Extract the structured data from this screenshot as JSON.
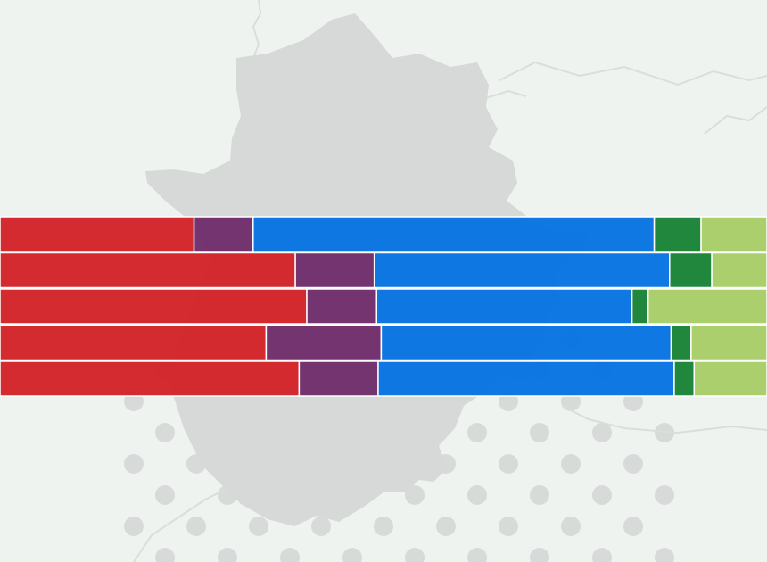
{
  "background": {
    "color": "#eef3f0",
    "region_color": "#d7d8d8",
    "dot_color": "#d2d5d4",
    "border_line_color": "#d8dfdb"
  },
  "chart_data": {
    "type": "bar",
    "orientation": "horizontal",
    "stacked": true,
    "normalized": true,
    "title": "",
    "xlabel": "",
    "ylabel": "",
    "xlim": [
      0,
      100
    ],
    "grid": false,
    "legend": "none",
    "categories": [
      "",
      "",
      "",
      "",
      ""
    ],
    "series": [
      {
        "color": "#d22228",
        "values": [
          25.3,
          38.5,
          40.0,
          34.7,
          39.0
        ]
      },
      {
        "color": "#6e2d6b",
        "values": [
          7.7,
          10.3,
          9.1,
          15.0,
          10.3
        ]
      },
      {
        "color": "#0672e2",
        "values": [
          52.3,
          38.5,
          33.3,
          37.8,
          38.6
        ]
      },
      {
        "color": "#178235",
        "values": [
          6.1,
          5.5,
          2.1,
          2.6,
          2.6
        ]
      },
      {
        "color": "#a9cd68",
        "values": [
          8.6,
          7.2,
          15.5,
          9.9,
          9.5
        ]
      }
    ]
  }
}
